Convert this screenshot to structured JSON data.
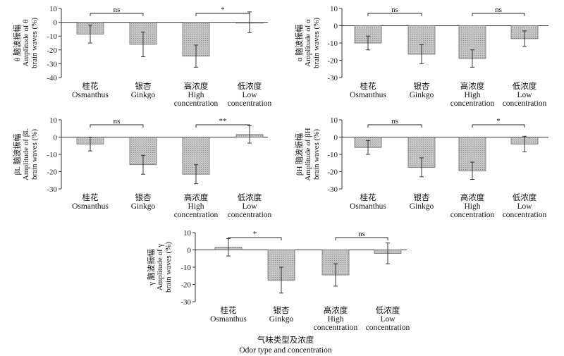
{
  "colors": {
    "bar_fill": "#c4c4c4",
    "bar_stroke": "#6a6a6a",
    "axis": "#333333",
    "pattern_dot": "#8c8c8c"
  },
  "x_title": {
    "zh": "气味类型及浓度",
    "en": "Odor type and concentration"
  },
  "chart_data": [
    {
      "type": "bar",
      "panel": "theta",
      "ylabel": [
        "θ 脑波振幅",
        "Amplitude of θ",
        "brain waves (%)"
      ],
      "categories": [
        [
          "桂花",
          "Osmanthus"
        ],
        [
          "银杏",
          "Ginkgo"
        ],
        [
          "高浓度",
          "High",
          "concentration"
        ],
        [
          "低浓度",
          "Low",
          "concentration"
        ]
      ],
      "values": [
        -8.5,
        -16,
        -24.5,
        0
      ],
      "errors": [
        6.5,
        9,
        8,
        7.5
      ],
      "ylim": [
        -40,
        10
      ],
      "yticks": [
        10,
        0,
        -10,
        -20,
        -30,
        -40
      ],
      "significance": [
        {
          "from": 0,
          "to": 1,
          "label": "ns"
        },
        {
          "from": 2,
          "to": 3,
          "label": "*"
        }
      ]
    },
    {
      "type": "bar",
      "panel": "alpha",
      "ylabel": [
        "α 脑波振幅",
        "Amplitude of α",
        "brain waves (%)"
      ],
      "categories": [
        [
          "桂花",
          "Osmanthus"
        ],
        [
          "银杏",
          "Ginkgo"
        ],
        [
          "高浓度",
          "High",
          "concentration"
        ],
        [
          "低浓度",
          "Low",
          "concentration"
        ]
      ],
      "values": [
        -10,
        -16.5,
        -19,
        -7.5
      ],
      "errors": [
        4,
        5.5,
        5,
        4.5
      ],
      "ylim": [
        -30,
        10
      ],
      "yticks": [
        10,
        0,
        -10,
        -20,
        -30
      ],
      "significance": [
        {
          "from": 0,
          "to": 1,
          "label": "ns"
        },
        {
          "from": 2,
          "to": 3,
          "label": "ns"
        }
      ]
    },
    {
      "type": "bar",
      "panel": "beta-L",
      "ylabel": [
        "βL 脑波振幅",
        "Amplitude of βL",
        "brain waves (%)"
      ],
      "categories": [
        [
          "桂花",
          "Osmanthus"
        ],
        [
          "银杏",
          "Ginkgo"
        ],
        [
          "高浓度",
          "High",
          "concentration"
        ],
        [
          "低浓度",
          "Low",
          "concentration"
        ]
      ],
      "values": [
        -4,
        -16,
        -21.5,
        1.5
      ],
      "errors": [
        4,
        5.5,
        5.5,
        5
      ],
      "ylim": [
        -30,
        10
      ],
      "yticks": [
        10,
        0,
        -10,
        -20,
        -30
      ],
      "significance": [
        {
          "from": 0,
          "to": 1,
          "label": "ns"
        },
        {
          "from": 2,
          "to": 3,
          "label": "**"
        }
      ]
    },
    {
      "type": "bar",
      "panel": "beta-H",
      "ylabel": [
        "βH 脑波振幅",
        "Amplitude of βH",
        "brain waves (%)"
      ],
      "categories": [
        [
          "桂花",
          "Osmanthus"
        ],
        [
          "银杏",
          "Ginkgo"
        ],
        [
          "高浓度",
          "High",
          "concentration"
        ],
        [
          "低浓度",
          "Low",
          "concentration"
        ]
      ],
      "values": [
        -6,
        -17.5,
        -19.5,
        -4
      ],
      "errors": [
        4,
        5.5,
        5,
        4.5
      ],
      "ylim": [
        -30,
        10
      ],
      "yticks": [
        10,
        0,
        -10,
        -20,
        -30
      ],
      "significance": [
        {
          "from": 0,
          "to": 1,
          "label": "ns"
        },
        {
          "from": 2,
          "to": 3,
          "label": "*"
        }
      ]
    },
    {
      "type": "bar",
      "panel": "gamma",
      "ylabel": [
        "γ 脑波振幅",
        "Amplitude of γ",
        "brain waves (%)"
      ],
      "categories": [
        [
          "桂花",
          "Osmanthus"
        ],
        [
          "银杏",
          "Ginkgo"
        ],
        [
          "高浓度",
          "High",
          "concentration"
        ],
        [
          "低浓度",
          "Low",
          "concentration"
        ]
      ],
      "values": [
        1.5,
        -17.5,
        -14.5,
        -2
      ],
      "errors": [
        5,
        7.5,
        6.5,
        6
      ],
      "ylim": [
        -30,
        10
      ],
      "yticks": [
        10,
        0,
        -10,
        -20,
        -30
      ],
      "significance": [
        {
          "from": 0,
          "to": 1,
          "label": "*"
        },
        {
          "from": 2,
          "to": 3,
          "label": "ns"
        }
      ]
    }
  ]
}
